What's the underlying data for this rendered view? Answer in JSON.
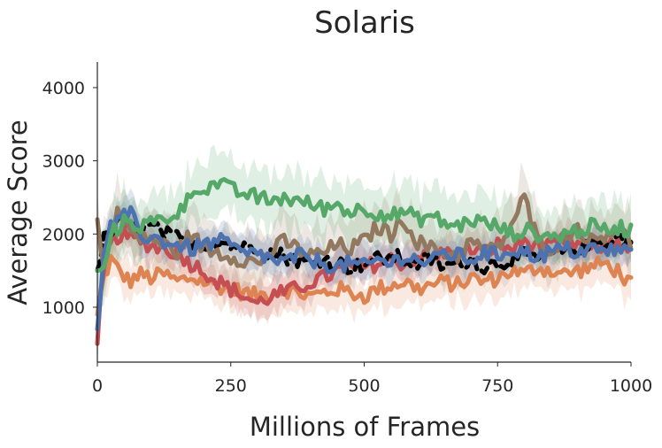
{
  "chart_data": {
    "type": "line",
    "title": "Solaris",
    "xlabel": "Millions of Frames",
    "ylabel": "Average Score",
    "xlim": [
      0,
      1000
    ],
    "ylim": [
      250,
      4350
    ],
    "x_ticks": [
      0,
      250,
      500,
      750,
      1000
    ],
    "y_ticks": [
      1000,
      2000,
      3000,
      4000
    ],
    "grid": false,
    "legend": "none",
    "series": [
      {
        "color": "#dd8452",
        "shade": "#dd8452",
        "dash": false,
        "band": 250,
        "x": [
          0,
          10,
          25,
          40,
          60,
          80,
          100,
          125,
          150,
          175,
          200,
          225,
          250,
          275,
          300,
          325,
          350,
          375,
          400,
          425,
          450,
          475,
          500,
          525,
          550,
          575,
          600,
          625,
          650,
          675,
          700,
          725,
          750,
          775,
          800,
          825,
          850,
          875,
          900,
          925,
          950,
          975,
          1000
        ],
        "y": [
          900,
          1350,
          1650,
          1500,
          1350,
          1450,
          1400,
          1450,
          1350,
          1400,
          1350,
          1300,
          1250,
          1200,
          1150,
          1200,
          1250,
          1200,
          1150,
          1200,
          1250,
          1200,
          1150,
          1250,
          1300,
          1350,
          1250,
          1300,
          1350,
          1300,
          1400,
          1350,
          1400,
          1500,
          1450,
          1550,
          1500,
          1450,
          1500,
          1550,
          1600,
          1500,
          1300
        ]
      },
      {
        "color": "#c44e52",
        "shade": "#c44e52",
        "dash": false,
        "band": 220,
        "x": [
          0,
          8,
          20,
          40,
          60,
          80,
          100,
          125,
          150,
          175,
          200,
          225,
          250,
          275,
          300,
          325,
          350,
          375,
          400,
          425,
          450,
          475,
          500,
          525,
          550,
          575,
          600,
          625,
          650,
          675,
          700,
          725,
          750,
          775,
          800,
          825,
          850,
          875,
          900,
          925,
          950,
          975,
          1000
        ],
        "y": [
          500,
          1300,
          1800,
          2000,
          1950,
          1900,
          1850,
          1800,
          1750,
          1600,
          1500,
          1350,
          1250,
          1150,
          1050,
          1150,
          1200,
          1250,
          1350,
          1400,
          1500,
          1550,
          1550,
          1600,
          1650,
          1600,
          1700,
          1650,
          1750,
          1700,
          1800,
          1750,
          1850,
          1800,
          1900,
          1850,
          1800,
          1900,
          1850,
          1800,
          1850,
          1900,
          1800
        ]
      },
      {
        "color": "#000000",
        "shade": "#999999",
        "dash": true,
        "band": 200,
        "x": [
          0,
          10,
          25,
          40,
          60,
          80,
          100,
          125,
          150,
          175,
          200,
          225,
          250,
          275,
          300,
          325,
          350,
          375,
          400,
          425,
          450,
          475,
          500,
          525,
          550,
          575,
          600,
          625,
          650,
          675,
          700,
          725,
          750,
          775,
          800,
          825,
          850,
          875,
          900,
          925,
          950,
          975,
          1000
        ],
        "y": [
          1500,
          1900,
          2000,
          2150,
          2100,
          2000,
          2100,
          2000,
          1950,
          1900,
          1850,
          1900,
          1850,
          1800,
          1850,
          1750,
          1700,
          1650,
          1600,
          1650,
          1600,
          1550,
          1600,
          1650,
          1700,
          1650,
          1600,
          1650,
          1550,
          1600,
          1650,
          1550,
          1600,
          1650,
          1700,
          1650,
          1700,
          1750,
          1800,
          1850,
          1900,
          1950,
          1900
        ]
      },
      {
        "color": "#937860",
        "shade": "#937860",
        "dash": false,
        "band": 380,
        "x": [
          0,
          10,
          25,
          40,
          60,
          80,
          100,
          125,
          150,
          175,
          200,
          225,
          250,
          275,
          300,
          325,
          350,
          375,
          400,
          425,
          450,
          475,
          500,
          525,
          550,
          575,
          600,
          625,
          650,
          675,
          700,
          725,
          750,
          775,
          800,
          825,
          850,
          875,
          900,
          925,
          950,
          975,
          1000
        ],
        "y": [
          2200,
          1500,
          2100,
          2300,
          2050,
          1900,
          1950,
          1850,
          1750,
          2000,
          1800,
          1750,
          1700,
          1650,
          1600,
          1750,
          1900,
          1800,
          1700,
          1750,
          1850,
          1800,
          1900,
          2100,
          2000,
          2200,
          1900,
          1800,
          1750,
          1700,
          1900,
          1750,
          1800,
          2100,
          2500,
          1900,
          1800,
          1950,
          2100,
          1900,
          2000,
          2100,
          1850
        ]
      },
      {
        "color": "#4c72b0",
        "shade": "#4c72b0",
        "dash": false,
        "band": 220,
        "x": [
          0,
          10,
          25,
          40,
          60,
          80,
          100,
          125,
          150,
          175,
          200,
          225,
          250,
          275,
          300,
          325,
          350,
          375,
          400,
          425,
          450,
          475,
          500,
          525,
          550,
          575,
          600,
          625,
          650,
          675,
          700,
          725,
          750,
          775,
          800,
          825,
          850,
          875,
          900,
          925,
          950,
          975,
          1000
        ],
        "y": [
          700,
          1600,
          2100,
          2150,
          2300,
          2000,
          1950,
          1900,
          1850,
          1800,
          1850,
          1900,
          1850,
          1700,
          1750,
          1650,
          1600,
          1700,
          1650,
          1600,
          1550,
          1600,
          1550,
          1650,
          1600,
          1700,
          1650,
          1600,
          1750,
          1700,
          1650,
          1750,
          1700,
          1800,
          1750,
          1700,
          1750,
          1800,
          1750,
          1800,
          1750,
          1800,
          1750
        ]
      },
      {
        "color": "#55a868",
        "shade": "#55a868",
        "dash": false,
        "band": 380,
        "x": [
          0,
          10,
          25,
          40,
          60,
          80,
          100,
          125,
          150,
          175,
          190,
          200,
          225,
          250,
          275,
          300,
          325,
          350,
          375,
          400,
          425,
          450,
          475,
          500,
          525,
          550,
          575,
          600,
          625,
          650,
          675,
          700,
          725,
          750,
          775,
          800,
          825,
          850,
          875,
          900,
          925,
          950,
          975,
          1000
        ],
        "y": [
          1500,
          1400,
          2000,
          2100,
          2200,
          2100,
          2150,
          2200,
          2300,
          2500,
          2700,
          2600,
          2700,
          2600,
          2550,
          2500,
          2450,
          2500,
          2450,
          2400,
          2350,
          2400,
          2300,
          2350,
          2300,
          2250,
          2300,
          2200,
          2250,
          2150,
          2100,
          2200,
          2150,
          2100,
          2000,
          2050,
          2000,
          1950,
          2000,
          2050,
          2100,
          2050,
          2100,
          2050
        ]
      }
    ]
  }
}
